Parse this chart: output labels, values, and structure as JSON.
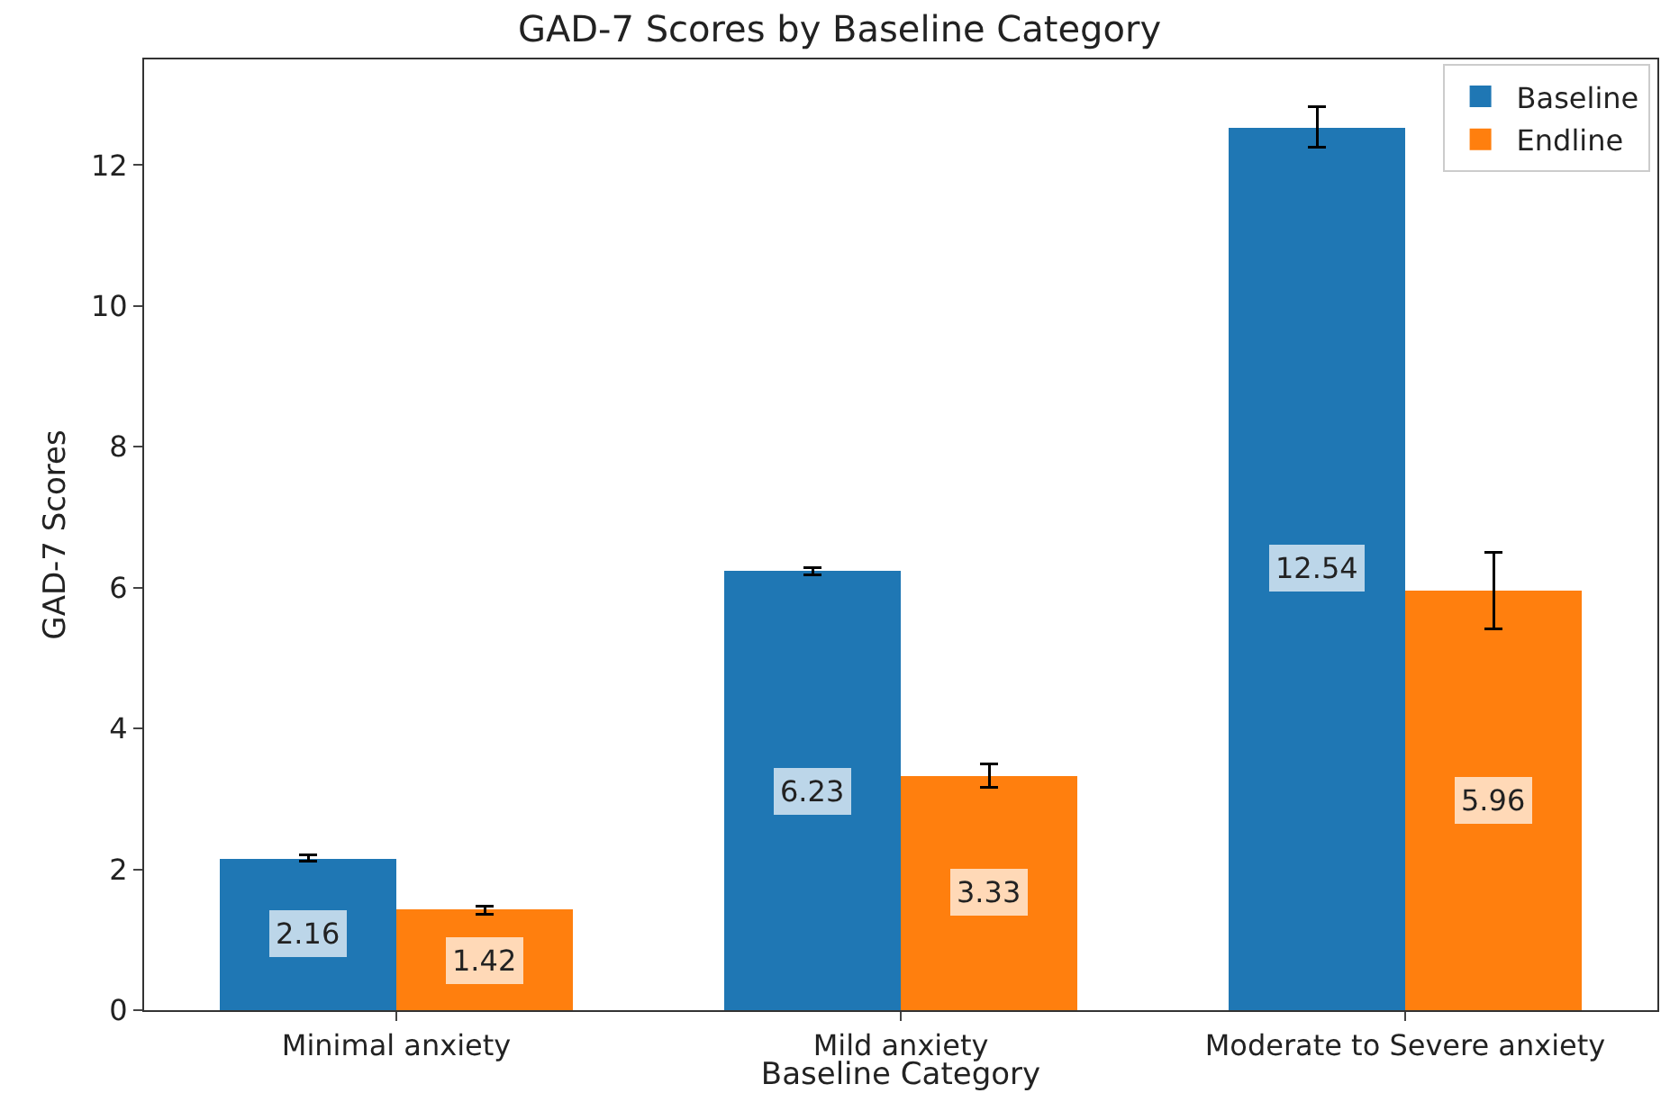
{
  "chart_data": {
    "type": "bar",
    "title": "GAD-7 Scores by Baseline Category",
    "xlabel": "Baseline Category",
    "ylabel": "GAD-7 Scores",
    "categories": [
      "Minimal anxiety",
      "Mild anxiety",
      "Moderate to Severe anxiety"
    ],
    "series": [
      {
        "name": "Baseline",
        "color": "#1f77b4",
        "values": [
          2.16,
          6.23,
          12.54
        ],
        "errors": [
          0.05,
          0.05,
          0.29
        ]
      },
      {
        "name": "Endline",
        "color": "#ff7f0e",
        "values": [
          1.42,
          3.33,
          5.96
        ],
        "errors": [
          0.06,
          0.17,
          0.54
        ]
      }
    ],
    "ylim": [
      0,
      13.5
    ],
    "yticks": [
      0,
      2,
      4,
      6,
      8,
      10,
      12
    ],
    "grid": false,
    "legend": "top right",
    "data_labels": true
  }
}
